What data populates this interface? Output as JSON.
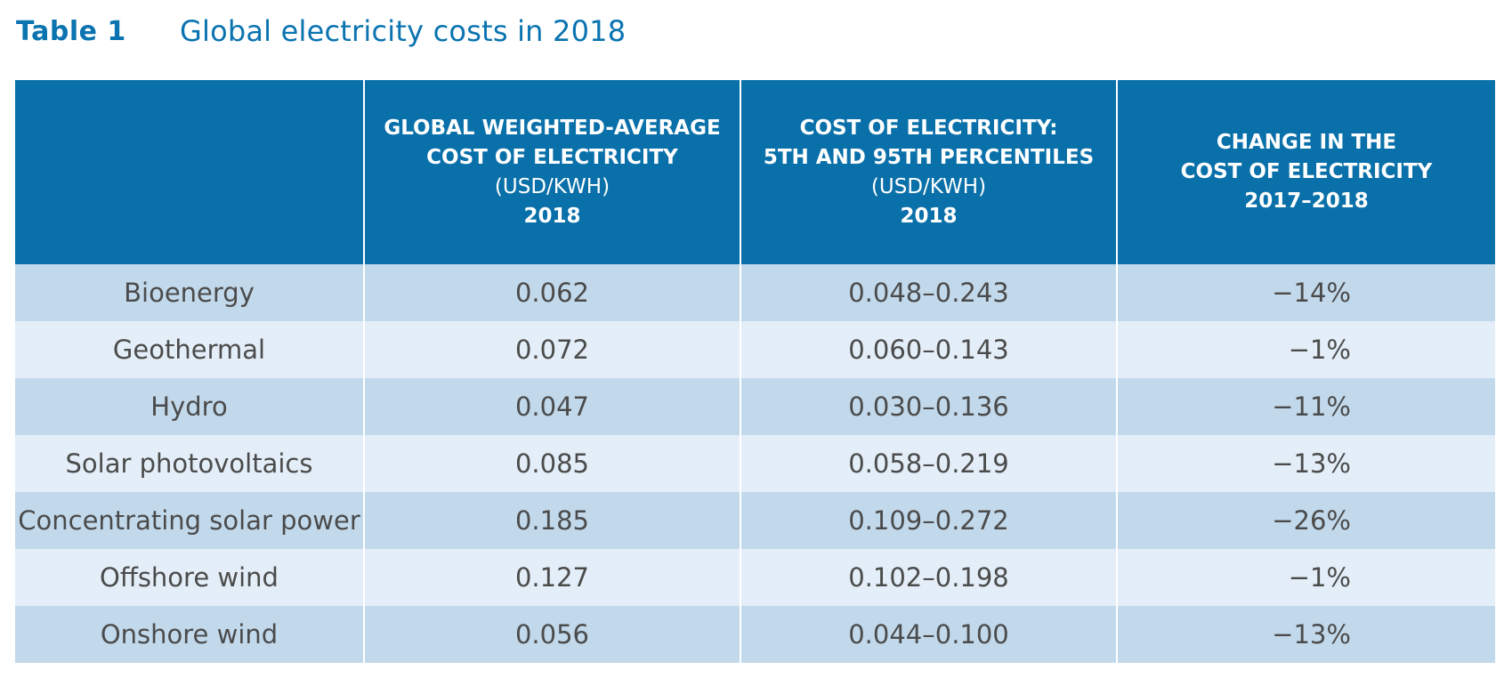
{
  "title": {
    "label": "Table 1",
    "text": "Global electricity costs in 2018"
  },
  "header": {
    "col0": "",
    "col1": {
      "line1": "GLOBAL WEIGHTED-AVERAGE",
      "line2": "COST OF ELECTRICITY",
      "unit": "(USD/KWH)",
      "year": "2018"
    },
    "col2": {
      "line1": "COST OF ELECTRICITY:",
      "line2": "5TH AND 95TH PERCENTILES",
      "unit": "(USD/KWH)",
      "year": "2018"
    },
    "col3": {
      "line1": "CHANGE IN THE",
      "line2": "COST OF ELECTRICITY",
      "line3": "2017–2018"
    }
  },
  "rows": [
    {
      "technology": "Bioenergy",
      "average": "0.062",
      "range": "0.048–0.243",
      "change": "−14%"
    },
    {
      "technology": "Geothermal",
      "average": "0.072",
      "range": "0.060–0.143",
      "change": "−1%"
    },
    {
      "technology": "Hydro",
      "average": "0.047",
      "range": "0.030–0.136",
      "change": "−11%"
    },
    {
      "technology": "Solar photovoltaics",
      "average": "0.085",
      "range": "0.058–0.219",
      "change": "−13%"
    },
    {
      "technology": "Concentrating solar power",
      "average": "0.185",
      "range": "0.109–0.272",
      "change": "−26%"
    },
    {
      "technology": "Offshore wind",
      "average": "0.127",
      "range": "0.102–0.198",
      "change": "−1%"
    },
    {
      "technology": "Onshore wind",
      "average": "0.056",
      "range": "0.044–0.100",
      "change": "−13%"
    }
  ],
  "colors": {
    "header_bg": "#0a70a9",
    "title_blue": "#0a73b0",
    "row_dark": "#c2d9ec",
    "row_light": "#e3eef8",
    "cell_text": "#4b4b4b"
  }
}
